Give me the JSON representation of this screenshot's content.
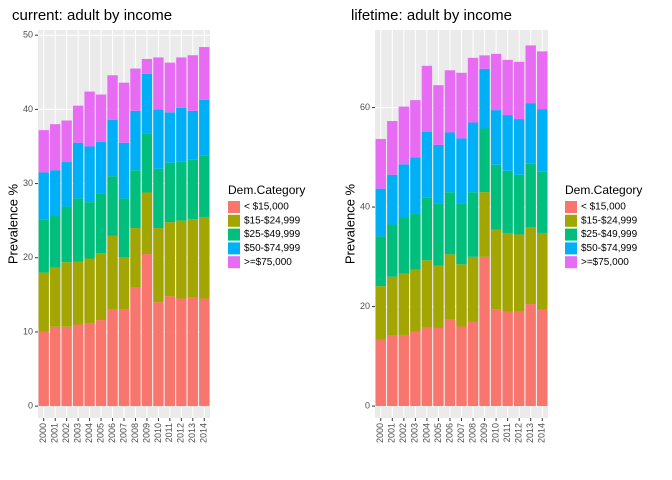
{
  "chart_data": [
    {
      "type": "bar",
      "title": "current: adult by income",
      "ylabel": "Prevalence %",
      "legend_title": "Dem.Category",
      "categories": [
        "2000",
        "2001",
        "2002",
        "2003",
        "2004",
        "2005",
        "2006",
        "2007",
        "2008",
        "2009",
        "2010",
        "2011",
        "2012",
        "2013",
        "2014"
      ],
      "ylim": [
        -1.6,
        50.7
      ],
      "yticks": [
        0,
        10,
        20,
        30,
        40,
        50
      ],
      "grid": true,
      "stacked": true,
      "series": [
        {
          "name": "< $15,000",
          "color": "#F8766D",
          "values": [
            10,
            10.7,
            10.7,
            11,
            11.1,
            11.6,
            13,
            13,
            16,
            20.5,
            14,
            14.8,
            14.5,
            14.6,
            14.5
          ]
        },
        {
          "name": "$15-$24,999",
          "color": "#A3A500",
          "values": [
            8,
            8,
            8.7,
            8.5,
            8.8,
            9,
            10,
            7,
            8,
            8.3,
            10,
            10,
            10.5,
            10.6,
            11
          ]
        },
        {
          "name": "$25-$49,999",
          "color": "#00BF7D",
          "values": [
            7.2,
            7,
            7.5,
            8.5,
            7.6,
            8,
            8,
            8,
            7.8,
            8,
            8,
            8,
            8,
            8,
            8.3
          ]
        },
        {
          "name": "$50-$74,999",
          "color": "#00B0F6",
          "values": [
            6.3,
            6.1,
            6,
            7.5,
            7.5,
            7,
            7.6,
            7.5,
            8,
            8,
            8,
            6.8,
            7.2,
            6.6,
            7.5
          ]
        },
        {
          "name": ">=$75,000",
          "color": "#E76BF3",
          "values": [
            5.7,
            6.2,
            5.6,
            5,
            7.4,
            6.4,
            6,
            8.1,
            5.7,
            2,
            7,
            6.7,
            6.8,
            7.5,
            7.1
          ]
        }
      ]
    },
    {
      "type": "bar",
      "title": "lifetime: adult by income",
      "ylabel": "Prevalence %",
      "legend_title": "Dem.Category",
      "categories": [
        "2000",
        "2001",
        "2002",
        "2003",
        "2004",
        "2005",
        "2006",
        "2007",
        "2008",
        "2009",
        "2010",
        "2011",
        "2012",
        "2013",
        "2014"
      ],
      "ylim": [
        -2.4,
        75.6
      ],
      "yticks": [
        0,
        20,
        40,
        60
      ],
      "grid": true,
      "stacked": true,
      "series": [
        {
          "name": "< $15,000",
          "color": "#F8766D",
          "values": [
            13.3,
            14.2,
            14.3,
            14.9,
            15.8,
            15.7,
            17.5,
            16,
            17,
            30,
            19.5,
            19,
            19,
            20.5,
            19.4
          ]
        },
        {
          "name": "$15-$24,999",
          "color": "#A3A500",
          "values": [
            10.8,
            11.8,
            12.3,
            12.5,
            13.5,
            12.5,
            13,
            12.5,
            13,
            13,
            16,
            15.8,
            15.5,
            15.5,
            15.4
          ]
        },
        {
          "name": "$25-$49,999",
          "color": "#00BF7D",
          "values": [
            10,
            10.5,
            11.4,
            11.2,
            12.6,
            12.5,
            12.5,
            12.3,
            13,
            12.8,
            13,
            12.5,
            12,
            12.7,
            12.3
          ]
        },
        {
          "name": "$50-$74,999",
          "color": "#00B0F6",
          "values": [
            9.6,
            10,
            10.6,
            11.4,
            13.2,
            11.8,
            12,
            13,
            14,
            12,
            11,
            11.2,
            11.2,
            12.2,
            12.6
          ]
        },
        {
          "name": ">=$75,000",
          "color": "#E76BF3",
          "values": [
            10,
            10.8,
            11.6,
            11.5,
            13.3,
            12,
            12.5,
            13.2,
            13,
            2.7,
            11.3,
            11.1,
            11.5,
            11.6,
            11.6
          ]
        }
      ]
    }
  ]
}
